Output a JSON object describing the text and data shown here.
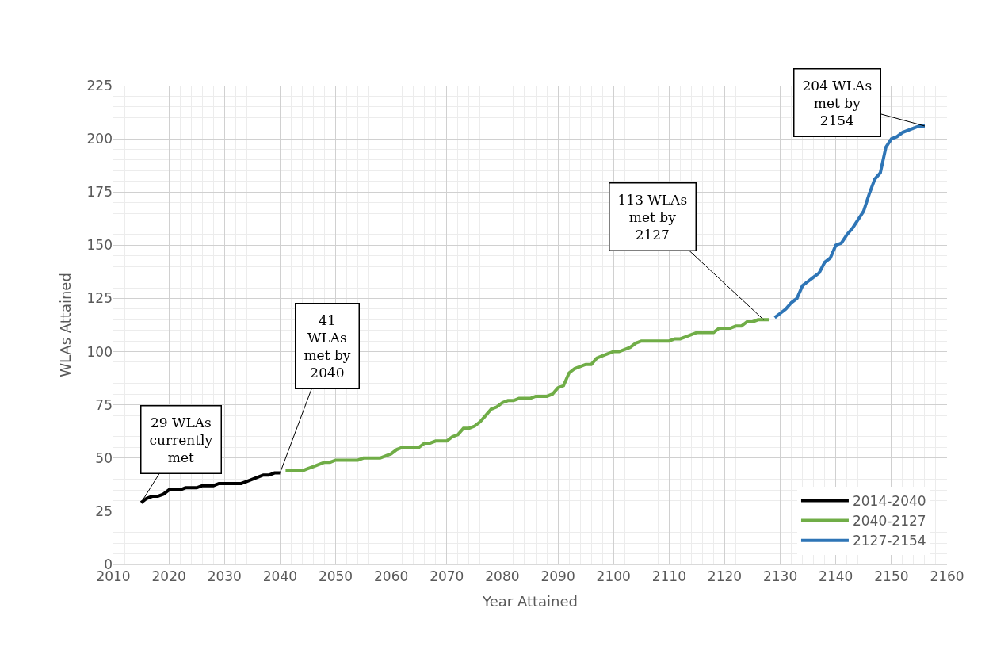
{
  "chart_data": {
    "type": "line",
    "xlabel": "Year Attained",
    "ylabel": "WLAs Attained",
    "xlim": [
      2010,
      2160
    ],
    "xticks": [
      2010,
      2020,
      2030,
      2040,
      2050,
      2060,
      2070,
      2080,
      2090,
      2100,
      2110,
      2120,
      2130,
      2140,
      2150,
      2160
    ],
    "ylim": [
      0,
      225
    ],
    "yticks": [
      0,
      25,
      50,
      75,
      100,
      125,
      150,
      175,
      200,
      225
    ],
    "grid": true,
    "legend": "bottom right",
    "marker": "none",
    "line_style": "solid",
    "series": [
      {
        "name": "2014-2040",
        "color": "#000000",
        "x": [
          2015,
          2016,
          2017,
          2018,
          2019,
          2020,
          2021,
          2022,
          2023,
          2024,
          2025,
          2026,
          2027,
          2028,
          2029,
          2030,
          2031,
          2032,
          2033,
          2034,
          2035,
          2036,
          2037,
          2038,
          2039,
          2040
        ],
        "values": [
          29,
          31,
          32,
          32,
          33,
          35,
          35,
          35,
          36,
          36,
          36,
          37,
          37,
          37,
          38,
          38,
          38,
          38,
          38,
          39,
          40,
          41,
          42,
          42,
          43,
          43
        ]
      },
      {
        "name": "2040-2127",
        "color": "#70ad47",
        "x": [
          2041,
          2042,
          2043,
          2044,
          2045,
          2046,
          2047,
          2048,
          2049,
          2050,
          2051,
          2052,
          2053,
          2054,
          2055,
          2056,
          2057,
          2058,
          2059,
          2060,
          2061,
          2062,
          2063,
          2064,
          2065,
          2066,
          2067,
          2068,
          2069,
          2070,
          2071,
          2072,
          2073,
          2074,
          2075,
          2076,
          2077,
          2078,
          2079,
          2080,
          2081,
          2082,
          2083,
          2084,
          2085,
          2086,
          2087,
          2088,
          2089,
          2090,
          2091,
          2092,
          2093,
          2094,
          2095,
          2096,
          2097,
          2098,
          2099,
          2100,
          2101,
          2102,
          2103,
          2104,
          2105,
          2106,
          2107,
          2108,
          2109,
          2110,
          2111,
          2112,
          2113,
          2114,
          2115,
          2116,
          2117,
          2118,
          2119,
          2120,
          2121,
          2122,
          2123,
          2124,
          2125,
          2126,
          2127,
          2128
        ],
        "values": [
          44,
          44,
          44,
          44,
          45,
          46,
          47,
          48,
          48,
          49,
          49,
          49,
          49,
          49,
          50,
          50,
          50,
          50,
          51,
          52,
          54,
          55,
          55,
          55,
          55,
          57,
          57,
          58,
          58,
          58,
          60,
          61,
          64,
          64,
          65,
          67,
          70,
          73,
          74,
          76,
          77,
          77,
          78,
          78,
          78,
          79,
          79,
          79,
          80,
          83,
          84,
          90,
          92,
          93,
          94,
          94,
          97,
          98,
          99,
          100,
          100,
          101,
          102,
          104,
          105,
          105,
          105,
          105,
          105,
          105,
          106,
          106,
          107,
          108,
          109,
          109,
          109,
          109,
          111,
          111,
          111,
          112,
          112,
          114,
          114,
          115,
          115,
          115
        ]
      },
      {
        "name": "2127-2154",
        "color": "#2e75b6",
        "x": [
          2129,
          2130,
          2131,
          2132,
          2133,
          2134,
          2135,
          2136,
          2137,
          2138,
          2139,
          2140,
          2141,
          2142,
          2143,
          2144,
          2145,
          2146,
          2147,
          2148,
          2149,
          2150,
          2151,
          2152,
          2153,
          2154,
          2155,
          2156
        ],
        "values": [
          116,
          118,
          120,
          123,
          125,
          131,
          133,
          135,
          137,
          142,
          144,
          150,
          151,
          155,
          158,
          162,
          166,
          174,
          181,
          184,
          196,
          200,
          201,
          203,
          204,
          205,
          206,
          206
        ]
      }
    ],
    "annotations": [
      {
        "text": "29 WLAs\ncurrently\nmet",
        "x": 2015,
        "y": 29
      },
      {
        "text": "41\nWLAs\nmet by\n2040",
        "x": 2040,
        "y": 43
      },
      {
        "text": "113 WLAs\nmet by\n2127",
        "x": 2127,
        "y": 115
      },
      {
        "text": "204 WLAs\nmet by\n2154",
        "x": 2156,
        "y": 206
      }
    ]
  }
}
